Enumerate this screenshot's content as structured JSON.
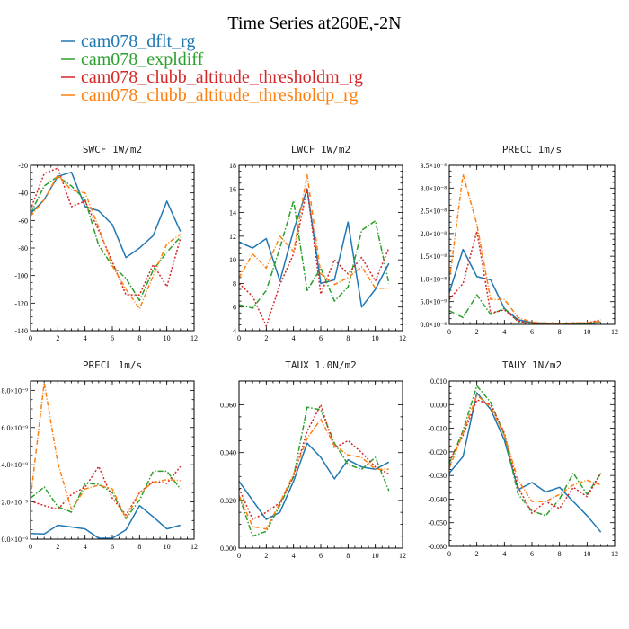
{
  "figure": {
    "title": "Time Series at260E,-2N",
    "legend": [
      {
        "label": "cam078_dflt_rg",
        "color": "#1f77b4"
      },
      {
        "label": "cam078_expldiff",
        "color": "#2ca02c"
      },
      {
        "label": "cam078_clubb_altitude_thresholdm_rg",
        "color": "#d62728"
      },
      {
        "label": "cam078_clubb_altitude_thresholdp_rg",
        "color": "#ff7f0e"
      }
    ]
  },
  "chart_data": [
    {
      "type": "line",
      "title": "SWCF   1W/m2",
      "xlim": [
        0,
        12
      ],
      "ylim": [
        -140,
        -20
      ],
      "xticks": [
        "0",
        "2",
        "4",
        "6",
        "8",
        "10",
        "12"
      ],
      "yticks": [
        -140,
        -120,
        -100,
        -80,
        -60,
        -40,
        -20
      ],
      "ytick_labels": [
        "-140",
        "-120",
        "-100",
        "-80",
        "-60",
        "-40",
        "-20"
      ],
      "x": [
        0,
        1,
        2,
        3,
        4,
        5,
        6,
        7,
        8,
        9,
        10,
        11
      ],
      "series": [
        {
          "name": "cam078_dflt_rg",
          "values": [
            -55,
            -45,
            -28,
            -25,
            -50,
            -53,
            -63,
            -87,
            -80,
            -71,
            -46,
            -68
          ]
        },
        {
          "name": "cam078_expldiff",
          "values": [
            -55,
            -35,
            -28,
            -35,
            -45,
            -78,
            -93,
            -102,
            -118,
            -96,
            -83,
            -72
          ]
        },
        {
          "name": "cam078_clubb_altitude_thresholdm_rg",
          "values": [
            -52,
            -26,
            -22,
            -50,
            -46,
            -67,
            -90,
            -114,
            -114,
            -92,
            -108,
            -73
          ]
        },
        {
          "name": "cam078_clubb_altitude_thresholdp_rg",
          "values": [
            -57,
            -45,
            -27,
            -38,
            -40,
            -65,
            -93,
            -110,
            -124,
            -100,
            -77,
            -70
          ]
        }
      ]
    },
    {
      "type": "line",
      "title": "LWCF   1W/m2",
      "xlim": [
        0,
        12
      ],
      "ylim": [
        4,
        18
      ],
      "xticks": [
        "0",
        "2",
        "4",
        "6",
        "8",
        "10",
        "12"
      ],
      "yticks": [
        4,
        6,
        8,
        10,
        12,
        14,
        16,
        18
      ],
      "ytick_labels": [
        "4",
        "6",
        "8",
        "10",
        "12",
        "14",
        "16",
        "18"
      ],
      "x": [
        0,
        1,
        2,
        3,
        4,
        5,
        6,
        7,
        8,
        9,
        10,
        11
      ],
      "series": [
        {
          "name": "cam078_dflt_rg",
          "values": [
            11.5,
            11,
            11.8,
            8.2,
            12.5,
            16,
            8,
            8.3,
            13.2,
            6,
            7.5,
            9.7
          ]
        },
        {
          "name": "cam078_expldiff",
          "values": [
            6.2,
            5.9,
            7.4,
            11,
            15,
            7.4,
            9.3,
            6.5,
            7.7,
            12.5,
            13.3,
            8
          ]
        },
        {
          "name": "cam078_clubb_altitude_thresholdm_rg",
          "values": [
            8,
            6.9,
            4.4,
            7.9,
            10.5,
            16,
            7.1,
            10,
            8.8,
            10.2,
            8.2,
            11
          ]
        },
        {
          "name": "cam078_clubb_altitude_thresholdp_rg",
          "values": [
            8.5,
            10.5,
            9.3,
            12,
            10.7,
            17.2,
            8.8,
            7.9,
            8.5,
            9.4,
            7.6,
            7.6
          ]
        }
      ]
    },
    {
      "type": "line",
      "title": "PRECC   1m/s",
      "xlim": [
        0,
        12
      ],
      "ylim": [
        0,
        3.5
      ],
      "xticks": [
        "0",
        "2",
        "4",
        "6",
        "8",
        "10",
        "12"
      ],
      "yticks": [
        0,
        0.5,
        1,
        1.5,
        2,
        2.5,
        3,
        3.5
      ],
      "ytick_labels": [
        "0.0×10⁻⁸",
        "5.0×10⁻⁹",
        "1.0×10⁻⁸",
        "1.5×10⁻⁸",
        "2.0×10⁻⁸",
        "2.5×10⁻⁸",
        "3.0×10⁻⁸",
        "3.5×10⁻⁸"
      ],
      "x": [
        0,
        1,
        2,
        3,
        4,
        5,
        6,
        7,
        8,
        9,
        10,
        11
      ],
      "series": [
        {
          "name": "cam078_dflt_rg",
          "values": [
            0.7,
            1.65,
            1.05,
            0.98,
            0.35,
            0.1,
            0.04,
            0.02,
            0.02,
            0.02,
            0.02,
            0.04
          ]
        },
        {
          "name": "cam078_expldiff",
          "values": [
            0.3,
            0.15,
            0.65,
            0.22,
            0.35,
            0.06,
            0.02,
            0.01,
            0.01,
            0.01,
            0.02,
            0.04
          ]
        },
        {
          "name": "cam078_clubb_altitude_thresholdm_rg",
          "values": [
            0.55,
            0.9,
            2.05,
            0.25,
            0.32,
            0.07,
            0.03,
            0.02,
            0.01,
            0.03,
            0.03,
            0.1
          ]
        },
        {
          "name": "cam078_clubb_altitude_thresholdp_rg",
          "values": [
            0.95,
            3.3,
            2.2,
            0.55,
            0.55,
            0.15,
            0.05,
            0.03,
            0.02,
            0.03,
            0.04,
            0.07
          ]
        }
      ]
    },
    {
      "type": "line",
      "title": "PRECL   1m/s",
      "xlim": [
        0,
        12
      ],
      "ylim": [
        0,
        8.5
      ],
      "xticks": [
        "0",
        "2",
        "4",
        "6",
        "8",
        "10",
        "12"
      ],
      "yticks": [
        0,
        2,
        4,
        6,
        8
      ],
      "ytick_labels": [
        "0.0×10⁻⁹",
        "2.0×10⁻⁹",
        "4.0×10⁻⁹",
        "6.0×10⁻⁹",
        "8.0×10⁻⁹"
      ],
      "x": [
        0,
        1,
        2,
        3,
        4,
        5,
        6,
        7,
        8,
        9,
        10,
        11
      ],
      "series": [
        {
          "name": "cam078_dflt_rg",
          "values": [
            0.3,
            0.28,
            0.75,
            0.65,
            0.55,
            0.05,
            0.05,
            0.5,
            1.8,
            1.2,
            0.55,
            0.75
          ]
        },
        {
          "name": "cam078_expldiff",
          "values": [
            2.2,
            2.8,
            1.75,
            1.45,
            3.0,
            2.95,
            2.5,
            1.1,
            2.1,
            3.65,
            3.65,
            2.7
          ]
        },
        {
          "name": "cam078_clubb_altitude_thresholdm_rg",
          "values": [
            2.05,
            1.8,
            1.6,
            2.4,
            2.8,
            3.9,
            2.2,
            1.3,
            2.5,
            3.1,
            3.0,
            3.9
          ]
        },
        {
          "name": "cam078_clubb_altitude_thresholdp_rg",
          "values": [
            2.2,
            8.4,
            4.1,
            1.6,
            2.7,
            2.9,
            2.7,
            1.1,
            2.5,
            3.05,
            3.2,
            3.15
          ]
        }
      ]
    },
    {
      "type": "line",
      "title": "TAUX   1.0N/m2",
      "xlim": [
        0,
        12
      ],
      "ylim": [
        0,
        0.07
      ],
      "xticks": [
        "0",
        "2",
        "4",
        "6",
        "8",
        "10",
        "12"
      ],
      "yticks": [
        0,
        0.02,
        0.04,
        0.06
      ],
      "ytick_labels": [
        "0.000",
        "0.020",
        "0.040",
        "0.060"
      ],
      "x": [
        0,
        1,
        2,
        3,
        4,
        5,
        6,
        7,
        8,
        9,
        10,
        11
      ],
      "series": [
        {
          "name": "cam078_dflt_rg",
          "values": [
            0.028,
            0.02,
            0.012,
            0.015,
            0.028,
            0.044,
            0.038,
            0.029,
            0.037,
            0.034,
            0.033,
            0.036
          ]
        },
        {
          "name": "cam078_expldiff",
          "values": [
            0.022,
            0.005,
            0.007,
            0.018,
            0.03,
            0.059,
            0.058,
            0.044,
            0.035,
            0.033,
            0.038,
            0.024
          ]
        },
        {
          "name": "cam078_clubb_altitude_thresholdm_rg",
          "values": [
            0.025,
            0.012,
            0.015,
            0.019,
            0.03,
            0.049,
            0.06,
            0.042,
            0.045,
            0.04,
            0.034,
            0.031
          ]
        },
        {
          "name": "cam078_clubb_altitude_thresholdp_rg",
          "values": [
            0.022,
            0.009,
            0.008,
            0.019,
            0.031,
            0.046,
            0.054,
            0.043,
            0.039,
            0.038,
            0.033,
            0.033
          ]
        }
      ]
    },
    {
      "type": "line",
      "title": "TAUY   1N/m2",
      "xlim": [
        0,
        12
      ],
      "ylim": [
        -0.06,
        0.01
      ],
      "xticks": [
        "0",
        "2",
        "4",
        "6",
        "8",
        "10",
        "12"
      ],
      "yticks": [
        -0.06,
        -0.05,
        -0.04,
        -0.03,
        -0.02,
        -0.01,
        0,
        0.01
      ],
      "ytick_labels": [
        "-0.060",
        "-0.050",
        "-0.040",
        "-0.030",
        "-0.020",
        "-0.010",
        "0.000",
        "0.010"
      ],
      "x": [
        0,
        1,
        2,
        3,
        4,
        5,
        6,
        7,
        8,
        9,
        10,
        11
      ],
      "series": [
        {
          "name": "cam078_dflt_rg",
          "values": [
            -0.029,
            -0.022,
            0.005,
            -0.002,
            -0.015,
            -0.036,
            -0.033,
            -0.037,
            -0.035,
            -0.041,
            -0.047,
            -0.054
          ]
        },
        {
          "name": "cam078_expldiff",
          "values": [
            -0.025,
            -0.011,
            0.008,
            0.001,
            -0.013,
            -0.038,
            -0.045,
            -0.047,
            -0.04,
            -0.029,
            -0.038,
            -0.029
          ]
        },
        {
          "name": "cam078_clubb_altitude_thresholdm_rg",
          "values": [
            -0.024,
            -0.013,
            0.002,
            0,
            -0.012,
            -0.035,
            -0.046,
            -0.041,
            -0.044,
            -0.035,
            -0.039,
            -0.029
          ]
        },
        {
          "name": "cam078_clubb_altitude_thresholdp_rg",
          "values": [
            -0.027,
            -0.012,
            0.004,
            -0.001,
            -0.013,
            -0.032,
            -0.041,
            -0.041,
            -0.038,
            -0.034,
            -0.032,
            -0.034
          ]
        }
      ]
    }
  ]
}
